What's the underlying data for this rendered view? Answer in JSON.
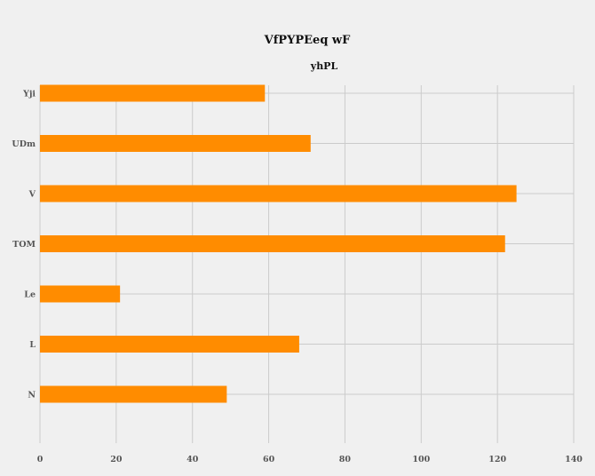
{
  "chart_data": {
    "type": "bar",
    "orientation": "horizontal",
    "title": "VfPYPEeq wF",
    "subtitle": "yhPL",
    "xlabel": "",
    "ylabel": "",
    "categories": [
      "Yji",
      "UDm",
      "V",
      "TOM",
      "Le",
      "L",
      "N"
    ],
    "values": [
      59,
      71,
      125,
      122,
      21,
      68,
      49
    ],
    "xlim": [
      0,
      140
    ],
    "xticks": [
      "0",
      "20",
      "40",
      "60",
      "80",
      "100",
      "120",
      "140"
    ],
    "grid": true,
    "legend": "none",
    "colors": {
      "bar": "#ff8c00",
      "grid": "#cbcbcb",
      "background": "#f0f0f0"
    }
  }
}
